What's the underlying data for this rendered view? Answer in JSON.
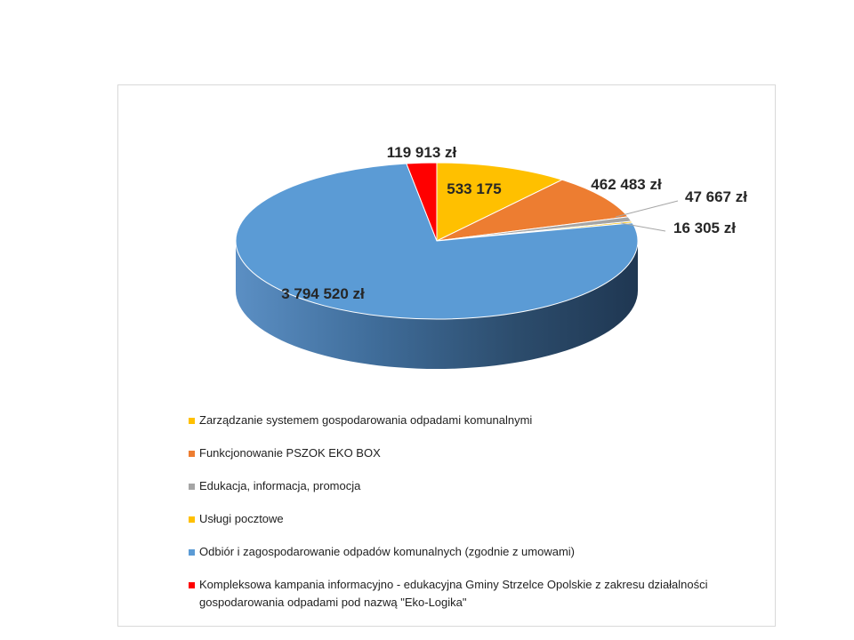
{
  "chart_data": {
    "type": "pie",
    "style": "3d",
    "title": "",
    "slices": [
      {
        "name": "Zarządzanie systemem gospodarowania odpadami komunalnymi",
        "value": 533175,
        "label": "533 175",
        "color": "#FFC000"
      },
      {
        "name": "Funkcjonowanie PSZOK EKO BOX",
        "value": 462483,
        "label": "462 483 zł",
        "color": "#ED7D31"
      },
      {
        "name": "Edukacja, informacja, promocja",
        "value": 47667,
        "label": "47 667 zł",
        "color": "#A5A5A5"
      },
      {
        "name": "Usługi pocztowe",
        "value": 16305,
        "label": "16 305 zł",
        "color": "#FFC000"
      },
      {
        "name": "Odbiór i zagospodarowanie odpadów komunalnych (zgodnie z umowami)",
        "value": 3794520,
        "label": "3 794 520 zł",
        "color": "#5B9BD5"
      },
      {
        "name": "Kompleksowa kampania informacyjno - edukacyjna Gminy Strzelce Opolskie z zakresu działalności gospodarowania odpadami pod nazwą \"Eko-Logika\"",
        "value": 119913,
        "label": "119 913 zł",
        "color": "#FF0000"
      }
    ],
    "legend_position": "bottom"
  }
}
